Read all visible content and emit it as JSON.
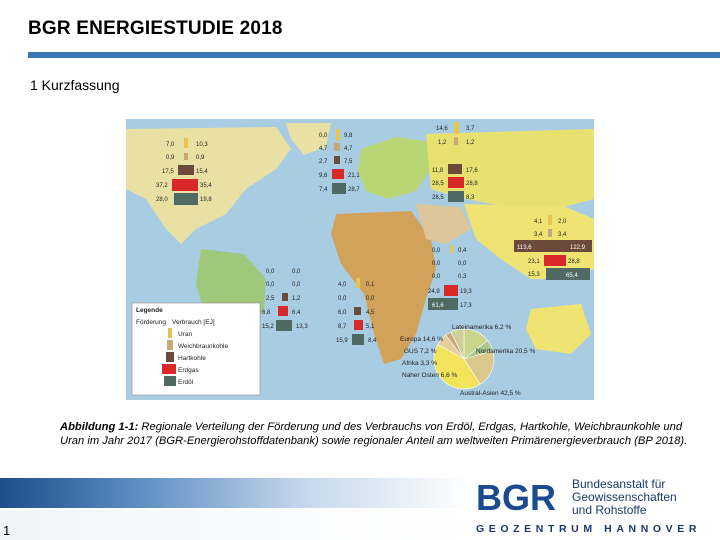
{
  "header": {
    "title": "BGR ENERGIESTUDIE 2018",
    "section": "1 Kurzfassung"
  },
  "map": {
    "legend": {
      "title": "Legende",
      "col1": "Förderung",
      "col2": "Verbrauch [EJ]",
      "items": [
        {
          "label": "Uran",
          "color": "#e6c553"
        },
        {
          "label": "Weichbraunkohle",
          "color": "#c9a877"
        },
        {
          "label": "Hartkohle",
          "color": "#6b4a3a"
        },
        {
          "label": "Erdgas",
          "color": "#d8282a"
        },
        {
          "label": "Erdöl",
          "color": "#4f6a62"
        }
      ]
    },
    "regions": [
      {
        "name": "Nordamerika",
        "rows": [
          [
            "7,0",
            "10,3"
          ],
          [
            "0,9",
            "0,9"
          ],
          [
            "17,5",
            "15,4"
          ],
          [
            "37,2",
            "35,4"
          ],
          [
            "28,0",
            "19,8"
          ]
        ]
      },
      {
        "name": "Europa",
        "rows": [
          [
            "0,0",
            "9,8"
          ],
          [
            "4,7",
            "4,7"
          ],
          [
            "2,7",
            "7,5"
          ],
          [
            "9,6",
            "21,1"
          ],
          [
            "7,4",
            "28,7"
          ]
        ]
      },
      {
        "name": "GUS",
        "rows": [
          [
            "14,6",
            "3,7"
          ],
          [
            "1,2",
            "1,2"
          ],
          [
            "11,8",
            "17,6"
          ],
          [
            "28,5",
            "28,8"
          ],
          [
            "28,5",
            "8,3"
          ]
        ]
      },
      {
        "name": "Asien",
        "rows": [
          [
            "4,1",
            "2,0"
          ],
          [
            "3,4",
            "3,4"
          ],
          [
            "113,6",
            "122,9"
          ],
          [
            "23,1",
            "28,8"
          ],
          [
            "15,3",
            "65,4"
          ]
        ]
      },
      {
        "name": "Naher Osten",
        "rows": [
          [
            "0,0",
            "0,4"
          ],
          [
            "0,0",
            "0,0"
          ],
          [
            "0,0",
            "0,3"
          ],
          [
            "24,9",
            "19,3"
          ],
          [
            "61,6",
            "17,3"
          ]
        ]
      },
      {
        "name": "Afrika",
        "rows": [
          [
            "4,0",
            "0,1"
          ],
          [
            "0,0",
            "0,0"
          ],
          [
            "6,0",
            "4,5"
          ],
          [
            "8,7",
            "5,1"
          ],
          [
            "15,9",
            "8,4"
          ]
        ]
      },
      {
        "name": "Lateinamerika",
        "rows": [
          [
            "0,0",
            "0,0"
          ],
          [
            "0,0",
            "0,0"
          ],
          [
            "2,5",
            "1,2"
          ],
          [
            "6,8",
            "6,4"
          ],
          [
            "15,2",
            "13,3"
          ]
        ]
      }
    ],
    "pie": [
      {
        "label": "Europa 14,6 %",
        "value": 14.6,
        "color": "#c9d58a"
      },
      {
        "label": "Lateinamerika 6,2 %",
        "value": 6.2,
        "color": "#a7c98a"
      },
      {
        "label": "Nordamerika 20,5 %",
        "value": 20.5,
        "color": "#d9c98c"
      },
      {
        "label": "Austral-Asien 42,5 %",
        "value": 42.5,
        "color": "#f2e35b"
      },
      {
        "label": "Naher Osten 6,6 %",
        "value": 6.6,
        "color": "#e2cf9a"
      },
      {
        "label": "Afrika 3,3 %",
        "value": 3.3,
        "color": "#c9a877"
      },
      {
        "label": "GUS 7,2 %",
        "value": 7.2,
        "color": "#cfcf9a"
      }
    ]
  },
  "caption": {
    "label": "Abbildung 1-1:",
    "text": " Regionale Verteilung der Förderung und des Verbrauchs von Erdöl, Erdgas, Hartkohle, Weichbraunkohle und Uran im Jahr 2017 (BGR-Energierohstoffdatenbank) sowie regionaler Anteil am weltweiten Primärenergieverbrauch (BP 2018)."
  },
  "footer": {
    "page": "1",
    "logo_text": "BGR",
    "institution": [
      "Bundesanstalt für",
      "Geowissenschaften",
      "und Rohstoffe"
    ],
    "tagline": "GEOZENTRUM HANNOVER"
  }
}
